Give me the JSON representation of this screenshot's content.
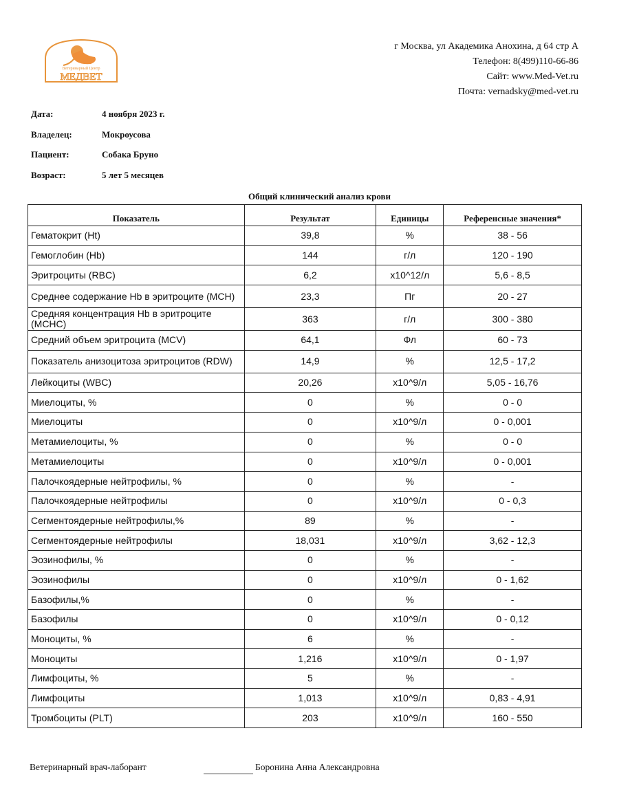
{
  "logo": {
    "subtitle": "Ветеринарный Центр",
    "name": "МЕДВЕТ",
    "color": "#e8943a"
  },
  "header": {
    "address": "г Москва, ул Академика Анохина, д 64 стр А",
    "phone": "Телефон: 8(499)110-66-86",
    "site": "Сайт: www.Med-Vet.ru",
    "email": "Почта: vernadsky@med-vet.ru"
  },
  "info": [
    {
      "label": "Дата:",
      "value": "4 ноября 2023 г."
    },
    {
      "label": "Владелец:",
      "value": "Мокроусова"
    },
    {
      "label": "Пациент:",
      "value": "Собака Бруно"
    },
    {
      "label": "Возраст:",
      "value": "5 лет 5 месяцев"
    }
  ],
  "title": "Общий клинический анализ крови",
  "table": {
    "headers": [
      "Показатель",
      "Результат",
      "Единицы",
      "Референсные значения*"
    ],
    "rows": [
      [
        "Гематокрит (Ht)",
        "39,8",
        "%",
        "38 - 56"
      ],
      [
        "Гемоглобин (Hb)",
        "144",
        "г/л",
        "120 - 190"
      ],
      [
        "Эритроциты (RBC)",
        "6,2",
        "x10^12/л",
        "5,6 - 8,5"
      ],
      [
        "Среднее содержание Hb в эритроците (MCH)",
        "23,3",
        "Пг",
        "20 - 27"
      ],
      [
        "Средняя концентрация Hb в эритроците (MCHC)",
        "363",
        "г/л",
        "300 - 380"
      ],
      [
        "Средний объем эритроцита (MCV)",
        "64,1",
        "Фл",
        "60 - 73"
      ],
      [
        "Показатель анизоцитоза эритроцитов (RDW)",
        "14,9",
        "%",
        "12,5 - 17,2"
      ],
      [
        "Лейкоциты (WBC)",
        "20,26",
        "x10^9/л",
        "5,05 - 16,76"
      ],
      [
        "Миелоциты, %",
        "0",
        "%",
        "0 - 0"
      ],
      [
        "Миелоциты",
        "0",
        "x10^9/л",
        "0 - 0,001"
      ],
      [
        "Метамиелоциты, %",
        "0",
        "%",
        "0 - 0"
      ],
      [
        "Метамиелоциты",
        "0",
        "x10^9/л",
        "0 - 0,001"
      ],
      [
        "Палочкоядерные нейтрофилы, %",
        "0",
        "%",
        "-"
      ],
      [
        "Палочкоядерные нейтрофилы",
        "0",
        "x10^9/л",
        "0 - 0,3"
      ],
      [
        "Сегментоядерные нейтрофилы,%",
        "89",
        "%",
        "-"
      ],
      [
        "Сегментоядерные нейтрофилы",
        "18,031",
        "x10^9/л",
        "3,62 - 12,3"
      ],
      [
        "Эозинофилы, %",
        "0",
        "%",
        "-"
      ],
      [
        "Эозинофилы",
        "0",
        "x10^9/л",
        "0 - 1,62"
      ],
      [
        "Базофилы,%",
        "0",
        "%",
        "-"
      ],
      [
        "Базофилы",
        "0",
        "x10^9/л",
        "0 - 0,12"
      ],
      [
        "Моноциты, %",
        "6",
        "%",
        "-"
      ],
      [
        "Моноциты",
        "1,216",
        "x10^9/л",
        "0 - 1,97"
      ],
      [
        "Лимфоциты, %",
        "5",
        "%",
        "-"
      ],
      [
        "Лимфоциты",
        "1,013",
        "x10^9/л",
        "0,83 - 4,91"
      ],
      [
        "Тромбоциты (PLT)",
        "203",
        "x10^9/л",
        "160 - 550"
      ]
    ]
  },
  "footer": {
    "role": "Ветеринарный врач-лаборант",
    "name": "Боронина Анна Александровна"
  }
}
